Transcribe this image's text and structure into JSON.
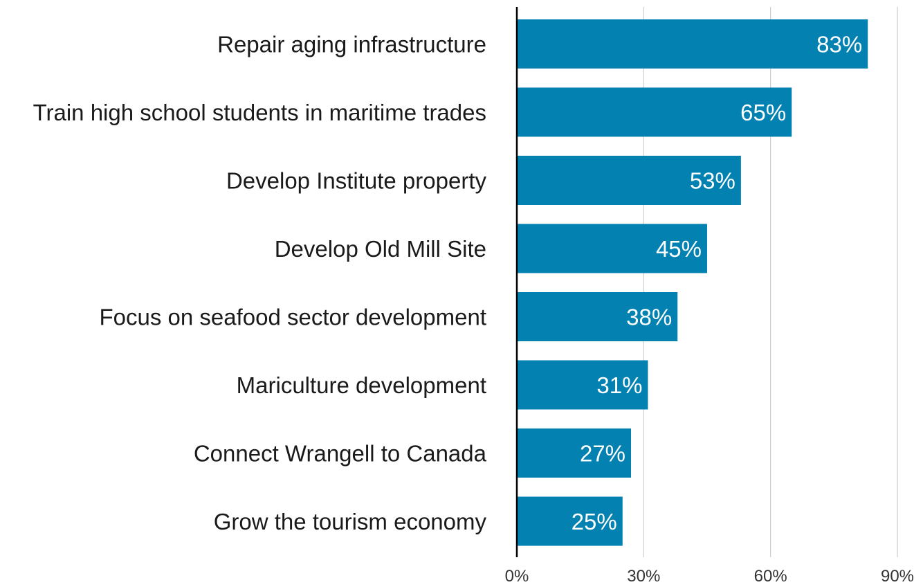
{
  "chart_data": {
    "type": "bar",
    "orientation": "horizontal",
    "title": "",
    "xlabel": "",
    "ylabel": "",
    "categories": [
      "Repair aging infrastructure",
      "Train high school students in maritime trades",
      "Develop Institute property",
      "Develop Old Mill Site",
      "Focus on seafood sector development",
      "Mariculture development",
      "Connect Wrangell to Canada",
      "Grow the tourism economy"
    ],
    "values": [
      83,
      65,
      53,
      45,
      38,
      31,
      27,
      25
    ],
    "value_labels": [
      "83%",
      "65%",
      "53%",
      "45%",
      "38%",
      "31%",
      "27%",
      "25%"
    ],
    "xlim": [
      0,
      90
    ],
    "x_ticks": [
      0,
      30,
      60,
      90
    ],
    "x_tick_labels": [
      "0%",
      "30%",
      "60%",
      "90%"
    ],
    "grid": true,
    "legend": "none",
    "colors": {
      "bar": "#0381b1",
      "grid": "#cccccc",
      "axis": "#000000",
      "value_label": "#ffffff",
      "category_label": "#1a1a1a"
    }
  }
}
